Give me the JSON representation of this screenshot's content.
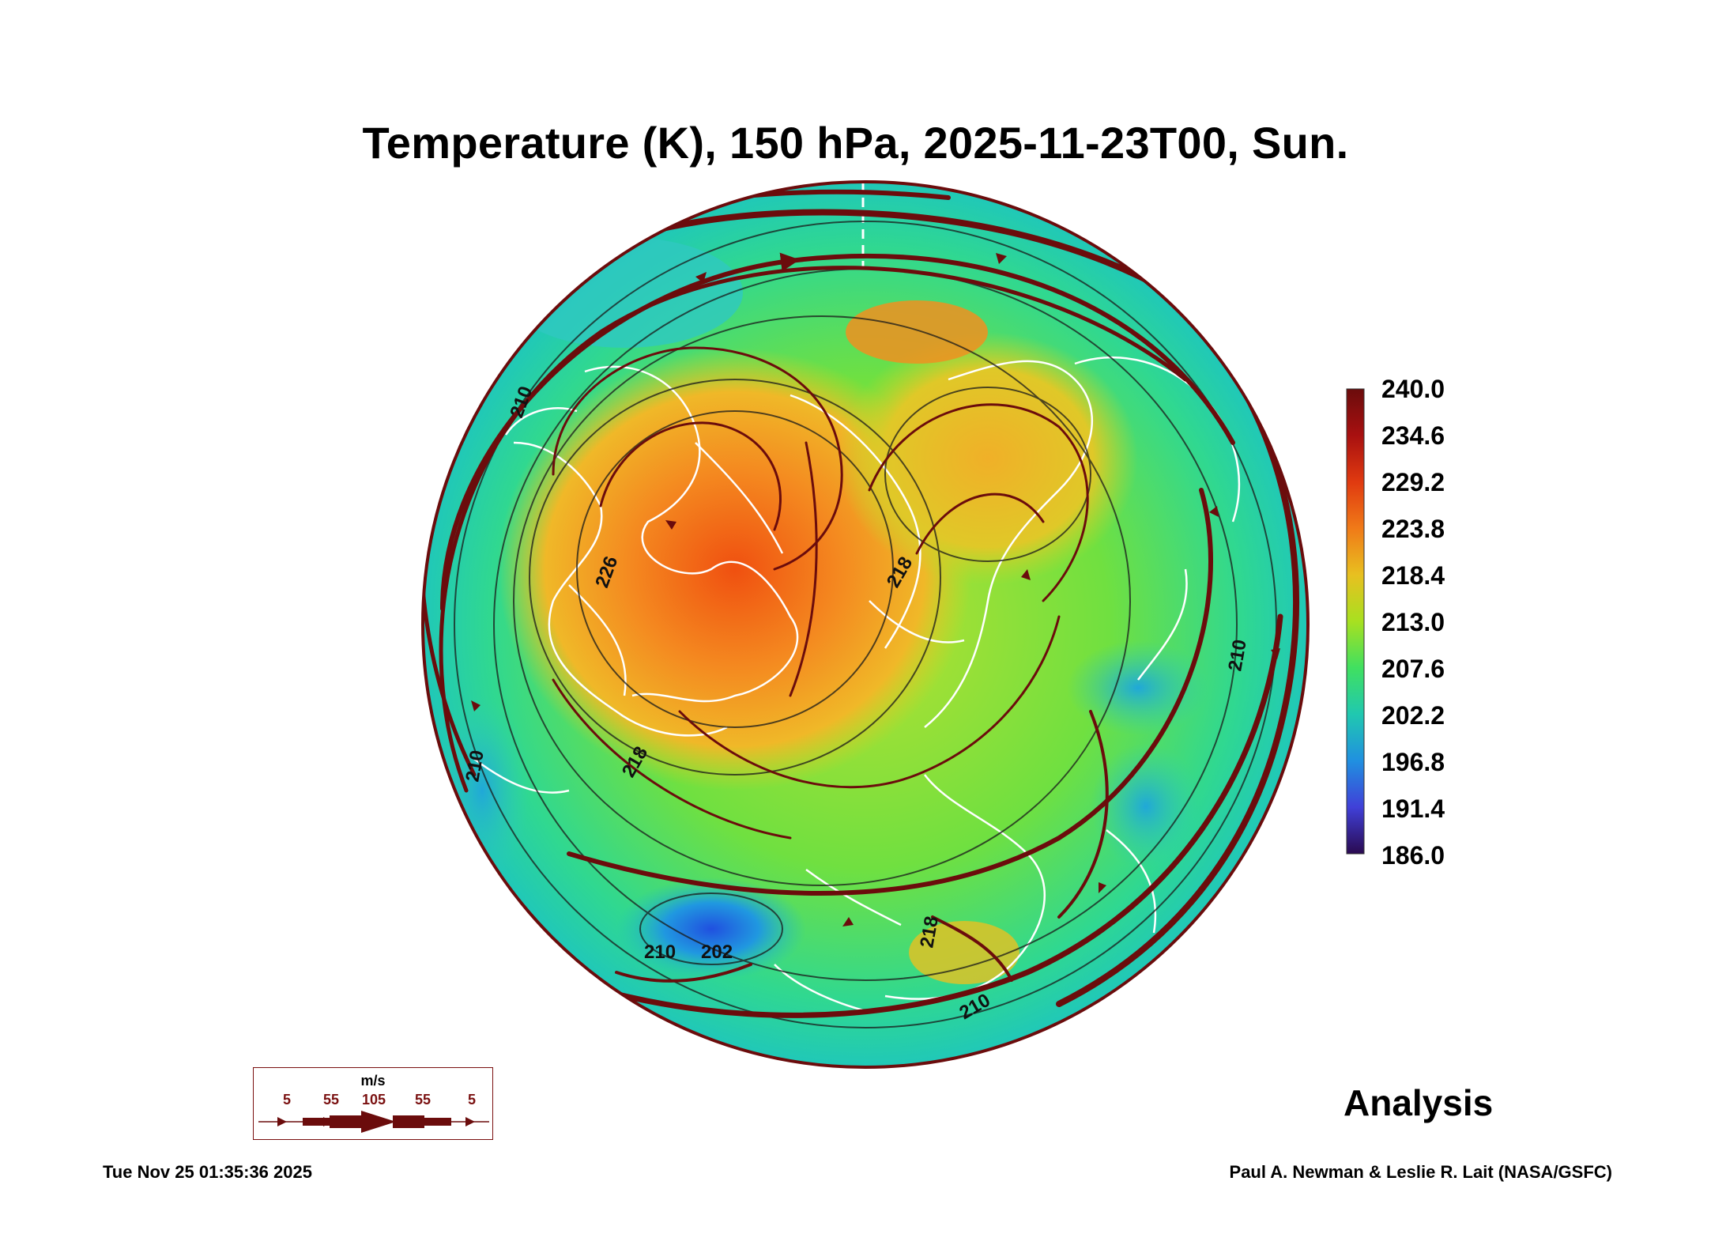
{
  "title": "Temperature (K), 150 hPa, 2025-11-23T00, Sun.",
  "colorbar": {
    "labels": [
      "240.0",
      "234.6",
      "229.2",
      "223.8",
      "218.4",
      "213.0",
      "207.6",
      "202.2",
      "196.8",
      "191.4",
      "186.0"
    ],
    "colors": [
      "#6b0c0c",
      "#a81010",
      "#e03a10",
      "#f07a18",
      "#e8c020",
      "#a8e020",
      "#40e060",
      "#20c8b0",
      "#2090e0",
      "#4040d8",
      "#501080",
      "#2a0a50"
    ]
  },
  "contour_labels": [
    "226",
    "218",
    "218",
    "210",
    "210",
    "210",
    "210",
    "202",
    "218",
    "210"
  ],
  "analysis_label": "Analysis",
  "wind_key": {
    "unit": "m/s",
    "speeds": [
      "5",
      "55",
      "105",
      "55",
      "5"
    ]
  },
  "footer": {
    "timestamp": "Tue Nov 25 01:35:36 2025",
    "credit": "Paul A. Newman & Leslie R. Lait (NASA/GSFC)"
  }
}
